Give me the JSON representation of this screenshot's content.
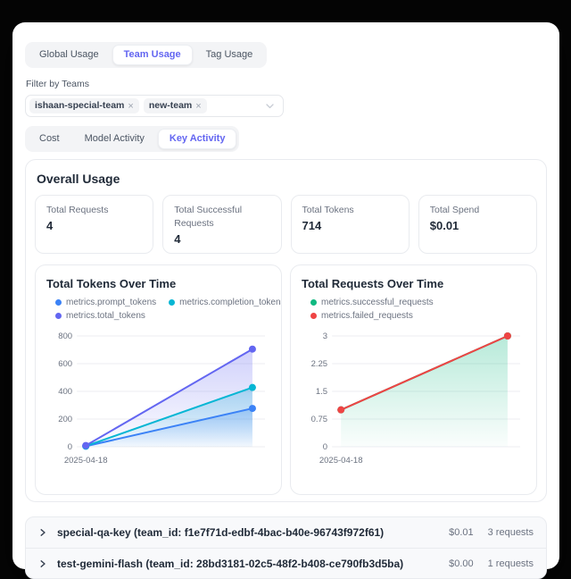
{
  "tabs_primary": {
    "items": [
      {
        "label": "Global Usage",
        "active": false
      },
      {
        "label": "Team Usage",
        "active": true
      },
      {
        "label": "Tag Usage",
        "active": false
      }
    ]
  },
  "filter": {
    "label": "Filter by Teams",
    "tags": [
      {
        "label": "ishaan-special-team",
        "remove": "×"
      },
      {
        "label": "new-team",
        "remove": "×"
      }
    ]
  },
  "tabs_secondary": {
    "items": [
      {
        "label": "Cost",
        "active": false
      },
      {
        "label": "Model Activity",
        "active": false
      },
      {
        "label": "Key Activity",
        "active": true
      }
    ]
  },
  "overview": {
    "title": "Overall Usage",
    "stats": [
      {
        "label": "Total Requests",
        "value": "4"
      },
      {
        "label": "Total Successful Requests",
        "value": "4"
      },
      {
        "label": "Total Tokens",
        "value": "714"
      },
      {
        "label": "Total Spend",
        "value": "$0.01"
      }
    ]
  },
  "chart_data": [
    {
      "type": "area",
      "title": "Total Tokens Over Time",
      "xlabel": "",
      "ylabel": "",
      "xticks_shown": [
        "2025-04-18"
      ],
      "yticks": [
        0,
        200,
        400,
        600,
        800
      ],
      "ylim": [
        0,
        800
      ],
      "grid": true,
      "legend_position": "top",
      "series": [
        {
          "name": "metrics.prompt_tokens",
          "color": "#3b82f6",
          "values": [
            4,
            277
          ],
          "area": true
        },
        {
          "name": "metrics.completion_tokens",
          "color": "#06b6d4",
          "values": [
            5,
            428
          ],
          "area": true
        },
        {
          "name": "metrics.total_tokens",
          "color": "#6366f1",
          "values": [
            9,
            705
          ],
          "area": true
        }
      ]
    },
    {
      "type": "area",
      "title": "Total Requests Over Time",
      "xlabel": "",
      "ylabel": "",
      "xticks_shown": [
        "2025-04-18"
      ],
      "yticks": [
        0,
        0.75,
        1.5,
        2.25,
        3
      ],
      "ylim": [
        0,
        3
      ],
      "grid": true,
      "legend_position": "top",
      "series": [
        {
          "name": "metrics.successful_requests",
          "color": "#10b981",
          "values": [
            1,
            3
          ],
          "area": true
        },
        {
          "name": "metrics.failed_requests",
          "color": "#ef4444",
          "values": [
            1,
            3
          ],
          "area": false
        }
      ]
    }
  ],
  "keys": {
    "rows": [
      {
        "name": "special-qa-key (team_id: f1e7f71d-edbf-4bac-b40e-96743f972f61)",
        "spend": "$0.01",
        "requests": "3 requests"
      },
      {
        "name": "test-gemini-flash (team_id: 28bd3181-02c5-48f2-b408-ce790fb3d5ba)",
        "spend": "$0.00",
        "requests": "1 requests"
      }
    ]
  }
}
